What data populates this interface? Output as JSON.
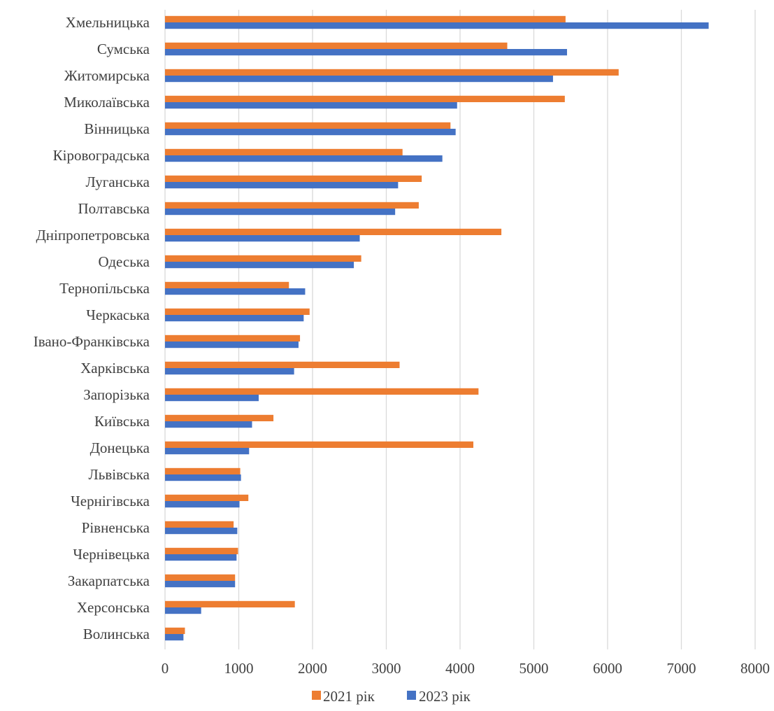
{
  "chart_data": {
    "type": "bar",
    "orientation": "horizontal",
    "categories": [
      "Хмельницька",
      "Сумська",
      "Житомирська",
      "Миколаївська",
      "Вінницька",
      "Кіровоградська",
      "Луганська",
      "Полтавська",
      "Дніпропетровська",
      "Одеська",
      "Тернопільська",
      "Черкаська",
      "Івано-Франківська",
      "Харківська",
      "Запорізька",
      "Київська",
      "Донецька",
      "Львівська",
      "Чернігівська",
      "Рівненська",
      "Чернівецька",
      "Закарпатська",
      "Херсонська",
      "Волинська"
    ],
    "series": [
      {
        "name": "2021 рік",
        "color": "#ED7D31",
        "values": [
          5430,
          4640,
          6150,
          5420,
          3870,
          3220,
          3480,
          3440,
          4560,
          2660,
          1680,
          1960,
          1830,
          3180,
          4250,
          1470,
          4180,
          1020,
          1130,
          930,
          990,
          950,
          1760,
          270
        ]
      },
      {
        "name": "2023 рік",
        "color": "#4472C4",
        "values": [
          7370,
          5450,
          5260,
          3960,
          3940,
          3760,
          3160,
          3120,
          2640,
          2560,
          1900,
          1880,
          1810,
          1750,
          1270,
          1180,
          1140,
          1030,
          1010,
          980,
          970,
          950,
          490,
          250
        ]
      }
    ],
    "xlim": [
      0,
      8000
    ],
    "xticks": [
      "0",
      "1000",
      "2000",
      "3000",
      "4000",
      "5000",
      "6000",
      "7000",
      "8000"
    ],
    "grid": true,
    "legend_position": "bottom"
  }
}
